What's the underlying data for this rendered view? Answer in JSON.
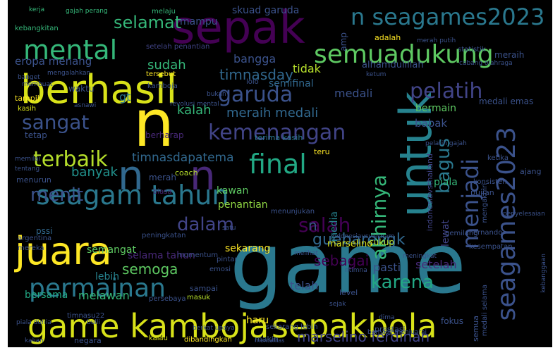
{
  "words": [
    {
      "text": "game",
      "color": "#2a788e"
    },
    {
      "text": "n",
      "color": "#fde725"
    },
    {
      "text": "sepak",
      "color": "#440154"
    },
    {
      "text": "n",
      "color": "#31688e"
    },
    {
      "text": "n",
      "color": "#482878"
    },
    {
      "text": "untuk",
      "color": "#26828e"
    },
    {
      "text": "berhasil",
      "color": "#d8e219"
    },
    {
      "text": "game kamboja",
      "color": "#d8e219"
    },
    {
      "text": "sepakbola",
      "color": "#d8e219"
    },
    {
      "text": "juara",
      "color": "#fde725"
    },
    {
      "text": "seagam tahun",
      "color": "#2a788e"
    },
    {
      "text": "semuadukung",
      "color": "#5ec962"
    },
    {
      "text": "n seagames2023",
      "color": "#2a788e"
    },
    {
      "text": "mental",
      "color": "#35b779"
    },
    {
      "text": "final",
      "color": "#22a884"
    },
    {
      "text": "seagames2023",
      "color": "#3b528b"
    },
    {
      "text": "permainan",
      "color": "#2a788e"
    },
    {
      "text": "garuda",
      "color": "#3b528b"
    },
    {
      "text": "pelatih",
      "color": "#414487"
    },
    {
      "text": "kemenangan",
      "color": "#414487"
    },
    {
      "text": "menjadi",
      "color": "#3b528b"
    },
    {
      "text": "akhirnya",
      "color": "#35b779"
    },
    {
      "text": "selamat",
      "color": "#35b779"
    },
    {
      "text": "terbaik",
      "color": "#b5de2b"
    },
    {
      "text": "sangat",
      "color": "#3b528b"
    },
    {
      "text": "salah",
      "color": "#440154"
    },
    {
      "text": "karena",
      "color": "#22a884"
    },
    {
      "text": "menit",
      "color": "#3b528b"
    },
    {
      "text": "dalam",
      "color": "#414487"
    },
    {
      "text": "bagus",
      "color": "#2a788e"
    },
    {
      "text": "n",
      "color": "#3b528b"
    },
    {
      "text": "guebarengk",
      "color": "#31688e"
    },
    {
      "text": "marselino ferdinan",
      "color": "#414487"
    },
    {
      "text": "semoga",
      "color": "#5ec962"
    },
    {
      "text": "sebagai",
      "color": "#440154"
    },
    {
      "text": "timnasdapatema",
      "color": "#31688e"
    },
    {
      "text": "timnasday",
      "color": "#31688e"
    },
    {
      "text": "meraih medali",
      "color": "#31688e"
    },
    {
      "text": "banyak",
      "color": "#21918c"
    },
    {
      "text": "eropa menang",
      "color": "#3b528b"
    },
    {
      "text": "sudah",
      "color": "#35b779"
    },
    {
      "text": "bangga",
      "color": "#3b528b"
    },
    {
      "text": "tidak",
      "color": "#b5de2b"
    },
    {
      "text": "semifinal",
      "color": "#31688e"
    },
    {
      "text": "kalah",
      "color": "#35b779"
    },
    {
      "text": "gt",
      "color": "#2a788e"
    },
    {
      "text": "medali",
      "color": "#3b528b"
    },
    {
      "text": "bermain",
      "color": "#5ec962"
    },
    {
      "text": "babak",
      "color": "#3b528b"
    },
    {
      "text": "setelah",
      "color": "#482878"
    },
    {
      "text": "pasti",
      "color": "#3b528b"
    },
    {
      "text": "telah",
      "color": "#3b528b"
    },
    {
      "text": "lebih",
      "color": "#26828e"
    },
    {
      "text": "melawan",
      "color": "#35b779"
    },
    {
      "text": "bersama",
      "color": "#22a884"
    },
    {
      "text": "selama tahun",
      "color": "#482878"
    },
    {
      "text": "semangat",
      "color": "#5ec962"
    },
    {
      "text": "sekarang",
      "color": "#fde725"
    },
    {
      "text": "penantian",
      "color": "#90d743"
    },
    {
      "text": "kawan",
      "color": "#5ec962"
    },
    {
      "text": "media",
      "color": "#26828e"
    },
    {
      "text": "piala",
      "color": "#35b779"
    },
    {
      "text": "lewat",
      "color": "#414487"
    },
    {
      "text": "meraih",
      "color": "#3b528b"
    },
    {
      "text": "merah",
      "color": "#3b528b"
    },
    {
      "text": "alhamdulillah",
      "color": "#3b528b"
    },
    {
      "text": "mampu",
      "color": "#3b528b"
    },
    {
      "text": "skuad garuda",
      "color": "#3b528b"
    },
    {
      "text": "berharap",
      "color": "#482878"
    },
    {
      "text": "tetap",
      "color": "#3b528b"
    },
    {
      "text": "amp",
      "color": "#3b528b"
    },
    {
      "text": "adalah",
      "color": "#fde725"
    },
    {
      "text": "haru",
      "color": "#fde725"
    },
    {
      "text": "cukup",
      "color": "#b5de2b"
    },
    {
      "text": "marselino",
      "color": "#d8e219"
    },
    {
      "text": "menunjukan",
      "color": "#3b528b"
    },
    {
      "text": "medali emas",
      "color": "#3b528b"
    },
    {
      "text": "ajang",
      "color": "#3b528b"
    },
    {
      "text": "pujian",
      "color": "#3b528b"
    },
    {
      "text": "indonesiavsthailand",
      "color": "#414487"
    },
    {
      "text": "setelah penantian",
      "color": "#414487"
    },
    {
      "text": "lolo",
      "color": "#3b528b"
    },
    {
      "text": "terima kasih",
      "color": "#2a788e"
    },
    {
      "text": "teru",
      "color": "#fde725"
    },
    {
      "text": "coach",
      "color": "#b5de2b"
    },
    {
      "text": "biasa",
      "color": "#482878"
    },
    {
      "text": "level",
      "color": "#3b528b"
    },
    {
      "text": "pssi",
      "color": "#31688e"
    },
    {
      "text": "menurun",
      "color": "#3b528b"
    },
    {
      "text": "kamboja",
      "color": "#3b528b"
    },
    {
      "text": "waktu",
      "color": "#3b528b"
    },
    {
      "text": "tampil",
      "color": "#fde725"
    },
    {
      "text": "kasih",
      "color": "#d8e219"
    },
    {
      "text": "argentina",
      "color": "#3b528b"
    },
    {
      "text": "mereka",
      "color": "#3b528b"
    },
    {
      "text": "sampai",
      "color": "#3b528b"
    },
    {
      "text": "pintar",
      "color": "#3b528b"
    },
    {
      "text": "emosi",
      "color": "#3b528b"
    },
    {
      "text": "masuk",
      "color": "#b5de2b"
    },
    {
      "text": "negara",
      "color": "#3b528b"
    },
    {
      "text": "kalau",
      "color": "#d8e219"
    },
    {
      "text": "dibandingkan",
      "color": "#fde725"
    },
    {
      "text": "makin",
      "color": "#3b528b"
    },
    {
      "text": "persebaya",
      "color": "#3b528b"
    },
    {
      "text": "piala dunia",
      "color": "#3b528b"
    },
    {
      "text": "prestasi",
      "color": "#3b528b"
    },
    {
      "text": "dima",
      "color": "#3b528b"
    },
    {
      "text": "fokus",
      "color": "#3b528b"
    },
    {
      "text": "semua",
      "color": "#3b528b"
    },
    {
      "text": "medali selama",
      "color": "#3b528b"
    },
    {
      "text": "gemilang",
      "color": "#3b528b"
    },
    {
      "text": "kebanggaan",
      "color": "#3b528b"
    },
    {
      "text": "penyelesaian",
      "color": "#3b528b"
    },
    {
      "text": "ernando",
      "color": "#3b528b"
    },
    {
      "text": "kesempatan",
      "color": "#3b528b"
    },
    {
      "text": "konsisten",
      "color": "#3b528b"
    },
    {
      "text": "ketika",
      "color": "#3b528b"
    },
    {
      "text": "mengakhiri",
      "color": "#3b528b"
    },
    {
      "text": "peningkatan",
      "color": "#3b528b"
    },
    {
      "text": "momentum",
      "color": "#3b528b"
    },
    {
      "text": "satu",
      "color": "#3b528b"
    },
    {
      "text": "timnasu22",
      "color": "#3b528b"
    },
    {
      "text": "kerja",
      "color": "#35b779"
    },
    {
      "text": "gajah perang",
      "color": "#35b779"
    },
    {
      "text": "melaju",
      "color": "#35b779"
    },
    {
      "text": "kebangkitan",
      "color": "#35b779"
    },
    {
      "text": "statistik",
      "color": "#3b528b"
    },
    {
      "text": "merah putih",
      "color": "#3b528b"
    },
    {
      "text": "sekarang lebih",
      "color": "#3b528b"
    },
    {
      "text": "bukan",
      "color": "#3b528b"
    },
    {
      "text": "tersebut",
      "color": "#fde725"
    },
    {
      "text": "membuat",
      "color": "#3b528b"
    },
    {
      "text": "mengalahkan",
      "color": "#3b528b"
    },
    {
      "text": "banget",
      "color": "#3b528b"
    },
    {
      "text": "asnawi",
      "color": "#3b528b"
    },
    {
      "text": "tentang",
      "color": "#3b528b"
    },
    {
      "text": "memilai",
      "color": "#3b528b"
    },
    {
      "text": "ketum",
      "color": "#3b528b"
    },
    {
      "text": "melihat",
      "color": "#3b528b"
    },
    {
      "text": "sejak",
      "color": "#3b528b"
    },
    {
      "text": "meningkat",
      "color": "#3b528b"
    },
    {
      "text": "berhasil menjuarai",
      "color": "#3b528b"
    },
    {
      "text": "bulli",
      "color": "#3b528b"
    },
    {
      "text": "berkat upaya",
      "color": "#3b528b"
    },
    {
      "text": "kalian",
      "color": "#3b528b"
    },
    {
      "text": "mentalitas",
      "color": "#3b528b"
    },
    {
      "text": "indonesiavsvietnam",
      "color": "#3b528b"
    },
    {
      "text": "revolusi mental",
      "color": "#3b528b"
    },
    {
      "text": "pelatih gajah",
      "color": "#3b528b"
    },
    {
      "text": "cabang olahraga",
      "color": "#3b528b"
    },
    {
      "text": "ntimna",
      "color": "#3b528b"
    }
  ]
}
